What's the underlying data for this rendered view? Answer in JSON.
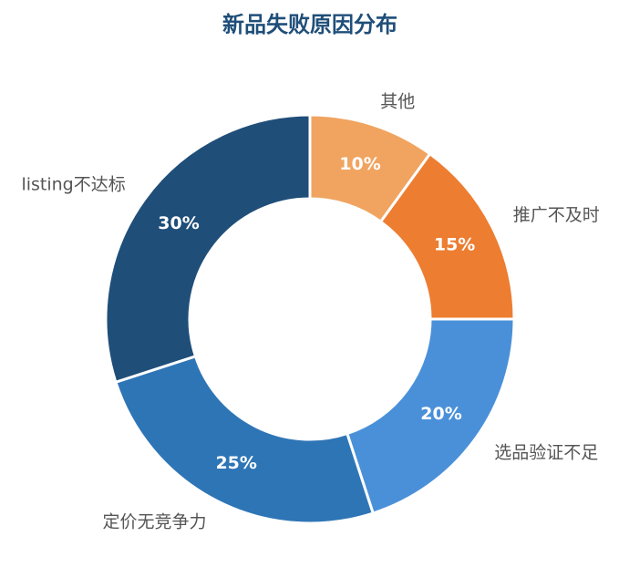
{
  "chart_data": {
    "type": "pie",
    "title": "新品失败原因分布",
    "categories": [
      "其他",
      "推广不及时",
      "选品验证不足",
      "定价无竞争力",
      "listing不达标"
    ],
    "values": [
      10,
      15,
      20,
      25,
      30
    ],
    "value_labels": [
      "10%",
      "15%",
      "20%",
      "25%",
      "30%"
    ],
    "colors": [
      "#f0a460",
      "#ed7d31",
      "#4a90d9",
      "#2e75b6",
      "#1f4e79"
    ]
  }
}
